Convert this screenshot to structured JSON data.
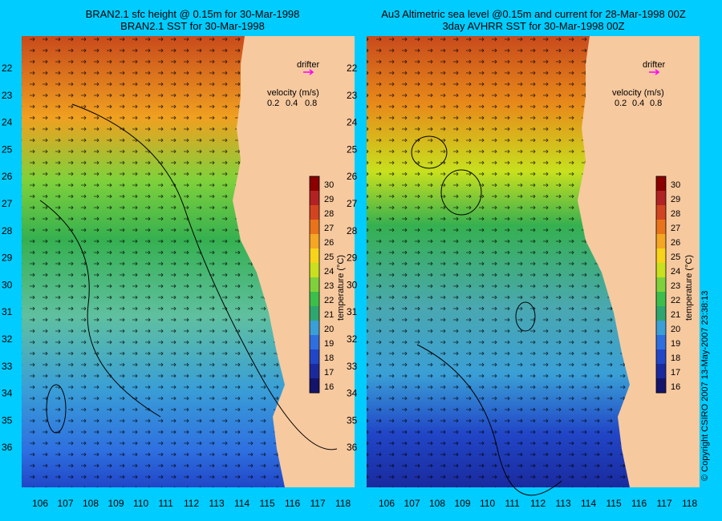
{
  "left_panel": {
    "title_line1": "BRAN2.1 sfc height @ 0.15m for 30-Mar-1998",
    "title_line2": "BRAN2.1 SST for 30-Mar-1998"
  },
  "right_panel": {
    "title_line1": "Au3 Altimetric sea level  @0.15m and current for 28-Mar-1998 00Z",
    "title_line2": "3day AVHRR SST for 30-Mar-1998 00Z"
  },
  "axes": {
    "lon_ticks": [
      "106",
      "107",
      "108",
      "109",
      "110",
      "111",
      "112",
      "113",
      "114",
      "115",
      "116",
      "117",
      "118"
    ],
    "lat_ticks": [
      "22",
      "23",
      "24",
      "25",
      "26",
      "27",
      "28",
      "29",
      "30",
      "31",
      "32",
      "33",
      "34",
      "35",
      "36"
    ]
  },
  "drifter_label": "drifter",
  "velocity_legend": {
    "title": "velocity (m/s)",
    "values": [
      "0.2",
      "0.4",
      "0.8"
    ]
  },
  "colorbar": {
    "label": "temperature (°C)",
    "ticks": [
      "30",
      "29",
      "28",
      "27",
      "26",
      "25",
      "24",
      "23",
      "22",
      "21",
      "20",
      "19",
      "18",
      "17",
      "16"
    ],
    "colors": [
      "#8b0000",
      "#b22222",
      "#d2441f",
      "#e8731a",
      "#f5a623",
      "#f7d31a",
      "#c8e01e",
      "#7fd13b",
      "#3cbf4a",
      "#2ea66f",
      "#3a9fd6",
      "#2e6fe0",
      "#2146c7",
      "#1a2a9e",
      "#14146b"
    ]
  },
  "copyright": "© Copyright CSIRO 2007   13-May-2007 23:38:13",
  "colors": {
    "background": "#00ccff",
    "land": "#f7c99f",
    "drifter": "#ff00ff"
  }
}
